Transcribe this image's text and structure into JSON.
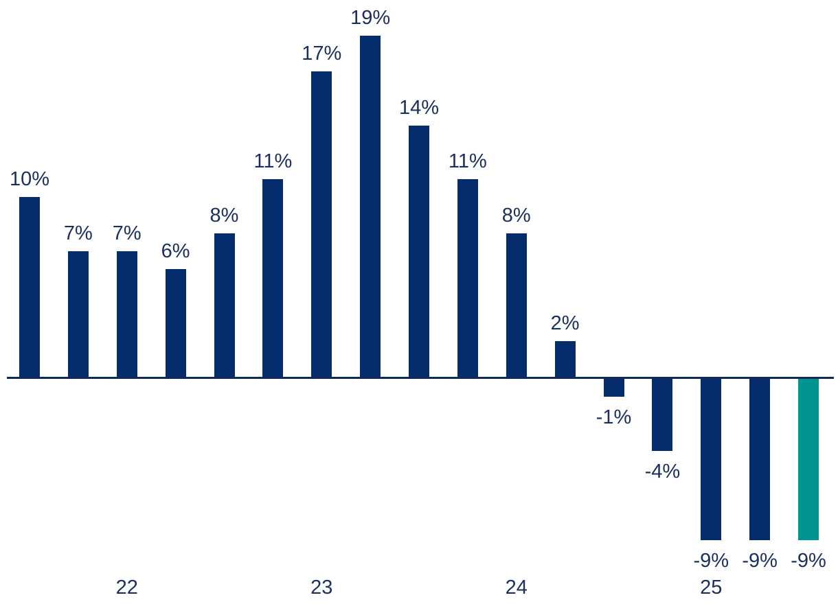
{
  "chart_data": {
    "type": "bar",
    "title": "",
    "xlabel": "",
    "ylabel": "",
    "values": [
      10,
      7,
      7,
      6,
      8,
      11,
      17,
      19,
      14,
      11,
      8,
      2,
      -1,
      -4,
      -9,
      -9,
      -9
    ],
    "bar_labels": [
      "10%",
      "7%",
      "7%",
      "6%",
      "8%",
      "11%",
      "17%",
      "19%",
      "14%",
      "11%",
      "8%",
      "2%",
      "-1%",
      "-4%",
      "-9%",
      "-9%",
      "-9%"
    ],
    "x_tick_labels": [
      "22",
      "23",
      "24",
      "25"
    ],
    "x_tick_bar_indices": [
      2,
      6,
      10,
      14
    ],
    "ylim": [
      -9,
      19
    ],
    "grid": false,
    "legend": null,
    "highlight_index": 16,
    "colors": {
      "bar": "#052d6e",
      "highlight": "#009490",
      "label_text": "#1a2f5e",
      "axis_line": "#0e2a55",
      "background": "#ffffff"
    }
  }
}
